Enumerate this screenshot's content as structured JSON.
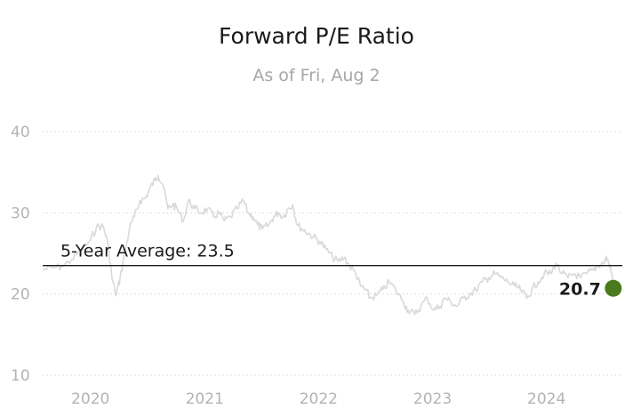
{
  "chart_data": {
    "type": "line",
    "title": "Forward P/E Ratio",
    "subtitle": "As of Fri, Aug 2",
    "xlabel": "",
    "ylabel": "",
    "ylim": [
      10,
      40
    ],
    "yticks": [
      "10",
      "20",
      "30",
      "40"
    ],
    "xticks": [
      "2020",
      "2021",
      "2022",
      "2023",
      "2024"
    ],
    "xlim": [
      "2019-08-01",
      "2024-08-31"
    ],
    "grid": "horizontal-dotted",
    "colors": {
      "line": "#d9d9d9",
      "average": "#1a1a1a",
      "last_point": "#4a7a1e"
    },
    "average": {
      "label": "5-Year Average: 23.5",
      "value": 23.5
    },
    "last_point": {
      "label": "20.7",
      "date": "2024-08-02",
      "value": 20.7
    },
    "series": [
      {
        "points": [
          [
            "2019-08-01",
            23.0
          ],
          [
            "2019-09-01",
            23.2
          ],
          [
            "2019-10-01",
            23.4
          ],
          [
            "2019-11-01",
            24.2
          ],
          [
            "2019-12-01",
            25.3
          ],
          [
            "2020-01-01",
            26.6
          ],
          [
            "2020-01-20",
            28.2
          ],
          [
            "2020-02-10",
            28.4
          ],
          [
            "2020-02-25",
            26.5
          ],
          [
            "2020-03-10",
            22.0
          ],
          [
            "2020-03-23",
            19.8
          ],
          [
            "2020-04-05",
            22.0
          ],
          [
            "2020-04-20",
            25.0
          ],
          [
            "2020-05-05",
            28.0
          ],
          [
            "2020-05-20",
            29.5
          ],
          [
            "2020-06-08",
            31.5
          ],
          [
            "2020-06-25",
            31.8
          ],
          [
            "2020-07-10",
            33.0
          ],
          [
            "2020-07-25",
            34.0
          ],
          [
            "2020-08-05",
            34.6
          ],
          [
            "2020-08-20",
            33.5
          ],
          [
            "2020-09-05",
            30.5
          ],
          [
            "2020-09-20",
            31.0
          ],
          [
            "2020-10-05",
            30.5
          ],
          [
            "2020-10-25",
            29.0
          ],
          [
            "2020-11-10",
            31.5
          ],
          [
            "2020-12-01",
            30.5
          ],
          [
            "2020-12-20",
            30.0
          ],
          [
            "2021-01-10",
            30.5
          ],
          [
            "2021-01-30",
            29.5
          ],
          [
            "2021-02-15",
            30.0
          ],
          [
            "2021-03-05",
            29.0
          ],
          [
            "2021-03-25",
            29.5
          ],
          [
            "2021-04-15",
            30.5
          ],
          [
            "2021-05-05",
            31.5
          ],
          [
            "2021-05-20",
            30.0
          ],
          [
            "2021-06-05",
            29.5
          ],
          [
            "2021-06-20",
            28.5
          ],
          [
            "2021-07-05",
            28.0
          ],
          [
            "2021-07-25",
            28.5
          ],
          [
            "2021-08-10",
            29.5
          ],
          [
            "2021-08-25",
            30.0
          ],
          [
            "2021-09-10",
            29.5
          ],
          [
            "2021-09-25",
            30.5
          ],
          [
            "2021-10-10",
            31.0
          ],
          [
            "2021-10-25",
            28.5
          ],
          [
            "2021-11-10",
            28.0
          ],
          [
            "2021-11-30",
            27.5
          ],
          [
            "2021-12-15",
            27.0
          ],
          [
            "2022-01-05",
            26.5
          ],
          [
            "2022-01-25",
            25.5
          ],
          [
            "2022-02-15",
            24.5
          ],
          [
            "2022-03-05",
            24.0
          ],
          [
            "2022-03-25",
            24.5
          ],
          [
            "2022-04-10",
            23.5
          ],
          [
            "2022-04-30",
            22.5
          ],
          [
            "2022-05-15",
            21.0
          ],
          [
            "2022-06-01",
            20.5
          ],
          [
            "2022-06-15",
            19.5
          ],
          [
            "2022-07-05",
            19.8
          ],
          [
            "2022-07-25",
            20.5
          ],
          [
            "2022-08-15",
            21.5
          ],
          [
            "2022-09-05",
            20.5
          ],
          [
            "2022-09-30",
            19.0
          ],
          [
            "2022-10-15",
            18.0
          ],
          [
            "2022-11-05",
            17.5
          ],
          [
            "2022-11-25",
            18.5
          ],
          [
            "2022-12-15",
            19.5
          ],
          [
            "2023-01-05",
            18.0
          ],
          [
            "2023-01-25",
            18.5
          ],
          [
            "2023-02-10",
            19.5
          ],
          [
            "2023-03-01",
            19.0
          ],
          [
            "2023-03-20",
            18.5
          ],
          [
            "2023-04-10",
            19.5
          ],
          [
            "2023-04-30",
            20.0
          ],
          [
            "2023-05-20",
            20.5
          ],
          [
            "2023-06-10",
            21.5
          ],
          [
            "2023-06-30",
            22.0
          ],
          [
            "2023-07-20",
            22.5
          ],
          [
            "2023-08-10",
            22.0
          ],
          [
            "2023-08-30",
            21.5
          ],
          [
            "2023-09-20",
            21.0
          ],
          [
            "2023-10-10",
            20.5
          ],
          [
            "2023-10-30",
            19.5
          ],
          [
            "2023-11-15",
            20.5
          ],
          [
            "2023-12-05",
            21.5
          ],
          [
            "2023-12-25",
            22.5
          ],
          [
            "2024-01-15",
            22.5
          ],
          [
            "2024-01-31",
            23.8
          ],
          [
            "2024-02-20",
            22.5
          ],
          [
            "2024-03-10",
            22.0
          ],
          [
            "2024-03-30",
            22.5
          ],
          [
            "2024-04-20",
            22.0
          ],
          [
            "2024-05-10",
            22.5
          ],
          [
            "2024-05-30",
            23.0
          ],
          [
            "2024-06-15",
            23.5
          ],
          [
            "2024-07-05",
            24.0
          ],
          [
            "2024-07-12",
            24.5
          ],
          [
            "2024-07-22",
            23.5
          ],
          [
            "2024-07-30",
            22.0
          ],
          [
            "2024-08-02",
            20.7
          ]
        ]
      }
    ]
  }
}
